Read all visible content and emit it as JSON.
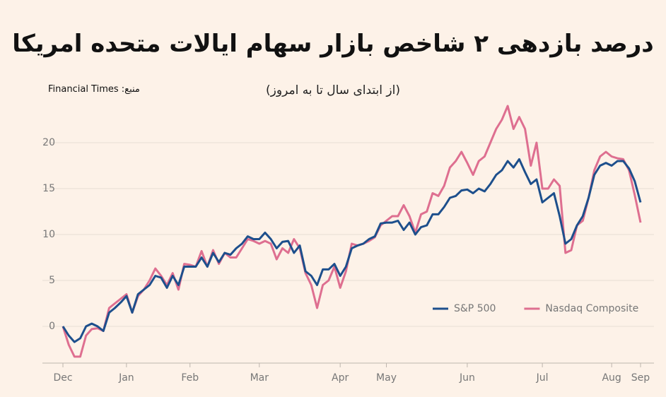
{
  "chart_data": {
    "type": "line",
    "title": "درصد بازدهی ۲ شاخص بازار سهام ایالات متحده امریکا",
    "subtitle": "(از ابتدای سال تا به امروز)",
    "source": "منبع: Financial Times",
    "categories": [
      "Dec",
      null,
      null,
      null,
      null,
      null,
      null,
      null,
      null,
      null,
      null,
      "Jan",
      null,
      null,
      null,
      null,
      null,
      null,
      null,
      null,
      null,
      null,
      "Feb",
      null,
      null,
      null,
      null,
      null,
      null,
      null,
      null,
      null,
      null,
      null,
      "Mar",
      null,
      null,
      null,
      null,
      null,
      null,
      null,
      null,
      null,
      null,
      null,
      null,
      null,
      "Apr",
      null,
      null,
      null,
      null,
      null,
      null,
      null,
      "May",
      null,
      null,
      null,
      null,
      null,
      null,
      null,
      null,
      null,
      null,
      null,
      null,
      null,
      "Jun",
      null,
      null,
      null,
      null,
      null,
      null,
      null,
      null,
      null,
      null,
      null,
      null,
      "Jul",
      null,
      null,
      null,
      null,
      null,
      null,
      null,
      null,
      null,
      null,
      null,
      "Aug",
      null,
      null,
      null,
      null,
      "Sep"
    ],
    "series": [
      {
        "name": "S&P 500",
        "color": "#1d4f8c",
        "values": [
          0,
          -1,
          -1.7,
          -1.3,
          0,
          0.3,
          0,
          -0.5,
          1.5,
          2,
          2.6,
          3.3,
          1.5,
          3.5,
          4,
          4.5,
          5.5,
          5.3,
          4.2,
          5.5,
          4.5,
          6.5,
          6.5,
          6.5,
          7.5,
          6.5,
          8,
          7,
          8,
          7.8,
          8.5,
          9,
          9.8,
          9.5,
          9.5,
          10.2,
          9.5,
          8.5,
          9.2,
          9.3,
          8,
          8.8,
          6,
          5.5,
          4.5,
          6.2,
          6.2,
          6.8,
          5.5,
          6.5,
          8.5,
          8.8,
          9,
          9.5,
          9.8,
          11.2,
          11.3,
          11.3,
          11.5,
          10.5,
          11.3,
          10,
          10.8,
          11,
          12.2,
          12.2,
          13,
          14,
          14.2,
          14.8,
          14.9,
          14.5,
          15,
          14.7,
          15.5,
          16.5,
          17,
          18,
          17.3,
          18.2,
          16.8,
          15.5,
          16,
          13.5,
          14,
          14.5,
          12,
          9,
          9.5,
          11,
          12,
          14,
          16.5,
          17.5,
          17.8,
          17.5,
          18,
          18,
          17.2,
          15.8,
          13.5
        ]
      },
      {
        "name": "Nasdaq Composite",
        "color": "#de6f90",
        "values": [
          0,
          -2,
          -3.3,
          -3.3,
          -1,
          -0.3,
          -0.2,
          -0.5,
          2,
          2.5,
          3,
          3.5,
          1.5,
          3.3,
          4,
          5,
          6.3,
          5.5,
          4.5,
          5.8,
          4,
          6.8,
          6.7,
          6.5,
          8.2,
          6.5,
          8.3,
          6.8,
          8,
          7.5,
          7.5,
          8.5,
          9.5,
          9.3,
          9,
          9.3,
          9,
          7.3,
          8.5,
          8,
          9.5,
          8.5,
          5.8,
          4.5,
          2,
          4.5,
          5,
          6.5,
          4.2,
          6,
          9,
          8.8,
          9,
          9.3,
          9.7,
          11,
          11.5,
          12,
          12,
          13.2,
          12,
          10.2,
          12.2,
          12.5,
          14.5,
          14.2,
          15.3,
          17.3,
          18,
          19,
          17.8,
          16.5,
          18,
          18.5,
          20,
          21.5,
          22.5,
          24,
          21.5,
          22.8,
          21.5,
          17.5,
          20,
          15,
          15,
          16,
          15.3,
          8,
          8.3,
          11,
          11.5,
          14,
          17,
          18.5,
          19,
          18.5,
          18.3,
          18.2,
          17,
          14.3,
          11.3
        ]
      }
    ],
    "ylim": [
      -4,
      25
    ],
    "yticks": [
      0,
      5,
      10,
      15,
      20
    ],
    "grid": true,
    "legend": "right"
  }
}
